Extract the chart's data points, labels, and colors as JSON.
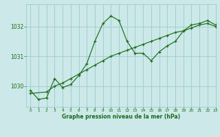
{
  "title": "Graphe pression niveau de la mer (hPa)",
  "bg_color": "#cce8e8",
  "grid_color": "#99cccc",
  "line_color": "#1a6b1a",
  "xlabel_color": "#1a6b1a",
  "xlim": [
    -0.5,
    23
  ],
  "ylim": [
    1029.3,
    1032.75
  ],
  "yticks": [
    1030,
    1031,
    1032
  ],
  "xticks": [
    0,
    1,
    2,
    3,
    4,
    5,
    6,
    7,
    8,
    9,
    10,
    11,
    12,
    13,
    14,
    15,
    16,
    17,
    18,
    19,
    20,
    21,
    22,
    23
  ],
  "series_jagged_x": [
    0,
    1,
    2,
    3,
    4,
    5,
    6,
    7,
    8,
    9,
    10,
    11,
    12,
    13,
    14,
    15,
    16,
    17,
    18,
    19,
    20,
    21,
    22,
    23
  ],
  "series_jagged_y": [
    1029.85,
    1029.55,
    1029.6,
    1030.25,
    1029.95,
    1030.05,
    1030.35,
    1030.75,
    1031.5,
    1032.1,
    1032.35,
    1032.2,
    1031.5,
    1031.1,
    1031.1,
    1030.85,
    1031.15,
    1031.35,
    1031.5,
    1031.85,
    1032.05,
    1032.1,
    1032.2,
    1032.05
  ],
  "series_straight_x": [
    0,
    2,
    3,
    4,
    5,
    6,
    7,
    8,
    9,
    10,
    11,
    12,
    13,
    14,
    15,
    16,
    17,
    18,
    19,
    20,
    21,
    22,
    23
  ],
  "series_straight_y": [
    1029.75,
    1029.8,
    1030.0,
    1030.1,
    1030.25,
    1030.4,
    1030.55,
    1030.7,
    1030.85,
    1031.0,
    1031.1,
    1031.2,
    1031.3,
    1031.4,
    1031.5,
    1031.6,
    1031.7,
    1031.8,
    1031.85,
    1031.95,
    1032.05,
    1032.1,
    1032.0
  ],
  "figsize": [
    3.2,
    2.0
  ],
  "dpi": 100
}
